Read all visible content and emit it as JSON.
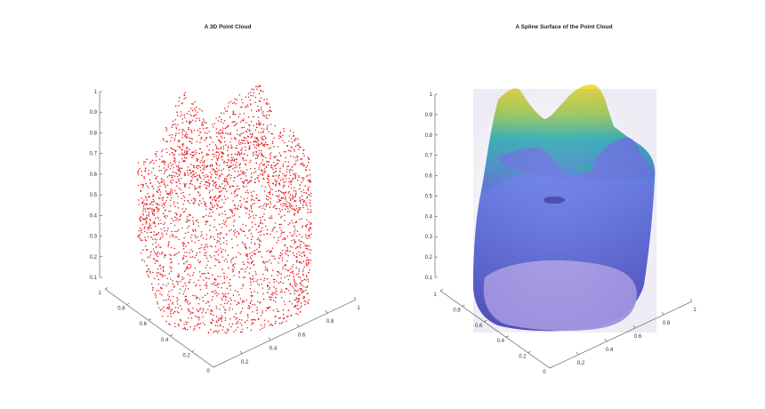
{
  "figure": {
    "background": "#ffffff",
    "axis_color": "#4d4d4d",
    "tick_color": "#333333"
  },
  "chart_data": [
    {
      "type": "scatter",
      "title": "A 3D Point Cloud",
      "xlabel": "",
      "ylabel": "",
      "zlabel": "",
      "marker_color": "#e41a1c",
      "xlim": [
        0,
        1
      ],
      "ylim": [
        0,
        1
      ],
      "zlim": [
        0.1,
        1
      ],
      "x_ticks": [
        "0.2",
        "0.4",
        "0.6",
        "0.8",
        "1"
      ],
      "y_ticks": [
        "0",
        "0.2",
        "0.4",
        "0.6",
        "0.8",
        "1"
      ],
      "z_ticks": [
        "0.1",
        "0.2",
        "0.3",
        "0.4",
        "0.5",
        "0.6",
        "0.7",
        "0.8",
        "0.9",
        "1"
      ],
      "grid": false,
      "legend": "none"
    },
    {
      "type": "surface",
      "title": "A Spline Surface of the Point Cloud",
      "xlabel": "",
      "ylabel": "",
      "zlabel": "",
      "colormap": [
        "#6f5fe0",
        "#5b7fd6",
        "#3ab7b7",
        "#9fd266",
        "#f5e03b"
      ],
      "base_color": "#a99be6",
      "xlim": [
        0,
        1
      ],
      "ylim": [
        0,
        1
      ],
      "zlim": [
        0.1,
        1
      ],
      "x_ticks": [
        "0.2",
        "0.4",
        "0.6",
        "0.8",
        "1"
      ],
      "y_ticks": [
        "0",
        "0.2",
        "0.4",
        "0.6",
        "0.8",
        "1"
      ],
      "z_ticks": [
        "0.1",
        "0.2",
        "0.3",
        "0.4",
        "0.5",
        "0.6",
        "0.7",
        "0.8",
        "0.9",
        "1"
      ],
      "grid": false,
      "legend": "none"
    }
  ]
}
